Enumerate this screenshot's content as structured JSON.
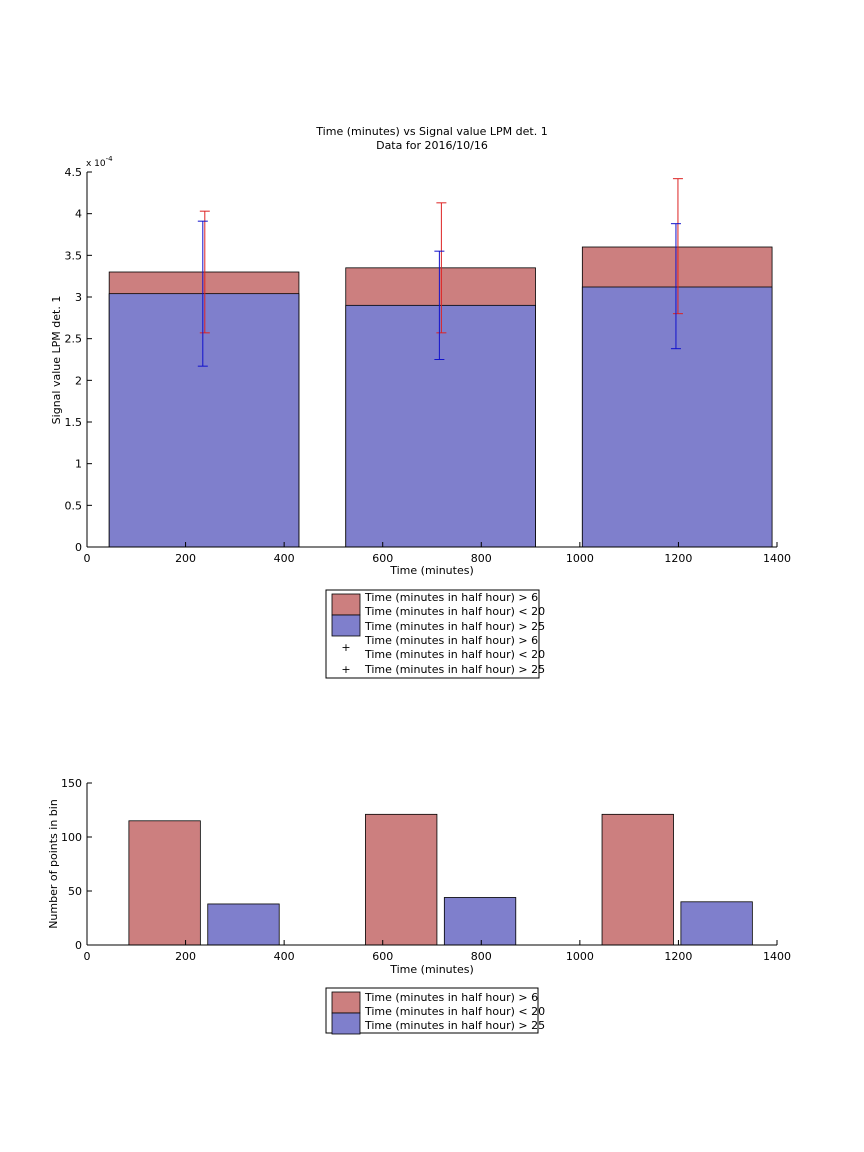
{
  "chart_data": [
    {
      "type": "bar",
      "title": "Time (minutes) vs Signal value LPM det. 1",
      "subtitle": "Data for 2016/10/16",
      "xlabel": "Time (minutes)",
      "ylabel": "Signal value LPM det. 1",
      "y_exponent_label": "x 10",
      "y_exponent_power": "-4",
      "xlim": [
        0,
        1400
      ],
      "ylim": [
        0,
        4.5
      ],
      "x_ticks": [
        "0",
        "200",
        "400",
        "600",
        "800",
        "1000",
        "1200",
        "1400"
      ],
      "y_ticks": [
        "0",
        "0.5",
        "1",
        "1.5",
        "2",
        "2.5",
        "3",
        "3.5",
        "4",
        "4.5"
      ],
      "grid": false,
      "bars": [
        {
          "x_start": 45,
          "x_end": 430,
          "series_gt6_lt20": 3.3,
          "series_gt25": 3.04
        },
        {
          "x_start": 525,
          "x_end": 910,
          "series_gt6_lt20": 3.35,
          "series_gt25": 2.9
        },
        {
          "x_start": 1005,
          "x_end": 1390,
          "series_gt6_lt20": 3.6,
          "series_gt25": 3.12
        }
      ],
      "errorbars": [
        {
          "name": "Time (minutes in half hour) > 6\nTime (minutes in half hour) < 20",
          "color": "#dd2222",
          "points": [
            {
              "x": 237,
              "y": 3.3,
              "low": 2.57,
              "high": 4.03
            },
            {
              "x": 717,
              "y": 3.35,
              "low": 2.57,
              "high": 4.13
            },
            {
              "x": 1197,
              "y": 3.6,
              "low": 2.8,
              "high": 4.42
            }
          ]
        },
        {
          "name": "Time (minutes in half hour) > 25",
          "color": "#1111cc",
          "points": [
            {
              "x": 237,
              "y": 3.04,
              "low": 2.17,
              "high": 3.91
            },
            {
              "x": 717,
              "y": 2.9,
              "low": 2.25,
              "high": 3.55
            },
            {
              "x": 1197,
              "y": 3.12,
              "low": 2.38,
              "high": 3.88
            }
          ]
        }
      ],
      "legend": [
        {
          "kind": "patch",
          "color": "#cc7f7f",
          "line1": "Time (minutes in half hour) > 6",
          "line2": "Time (minutes in half hour) < 20"
        },
        {
          "kind": "patch",
          "color": "#7f7fcc",
          "line1": "Time (minutes in half hour) > 25",
          "line2": ""
        },
        {
          "kind": "marker",
          "color": "#dd2222",
          "line1": "Time (minutes in half hour) > 6",
          "line2": "Time (minutes in half hour) < 20"
        },
        {
          "kind": "marker",
          "color": "#1111cc",
          "line1": "Time (minutes in half hour) > 25",
          "line2": ""
        }
      ],
      "legend_placement": "below"
    },
    {
      "type": "bar",
      "xlabel": "Time (minutes)",
      "ylabel": "Number of points in bin",
      "xlim": [
        0,
        1400
      ],
      "ylim": [
        0,
        150
      ],
      "x_ticks": [
        "0",
        "200",
        "400",
        "600",
        "800",
        "1000",
        "1200",
        "1400"
      ],
      "y_ticks": [
        "0",
        "50",
        "100",
        "150"
      ],
      "grid": false,
      "bars": [
        {
          "x_start": 85,
          "x_end": 230,
          "value": 115,
          "color": "#cc7f7f"
        },
        {
          "x_start": 245,
          "x_end": 390,
          "value": 38,
          "color": "#7f7fcc"
        },
        {
          "x_start": 565,
          "x_end": 710,
          "value": 121,
          "color": "#cc7f7f"
        },
        {
          "x_start": 725,
          "x_end": 870,
          "value": 44,
          "color": "#7f7fcc"
        },
        {
          "x_start": 1045,
          "x_end": 1190,
          "value": 121,
          "color": "#cc7f7f"
        },
        {
          "x_start": 1205,
          "x_end": 1350,
          "value": 40,
          "color": "#7f7fcc"
        }
      ],
      "legend": [
        {
          "kind": "patch",
          "color": "#cc7f7f",
          "line1": "Time (minutes in half hour) > 6",
          "line2": "Time (minutes in half hour) < 20"
        },
        {
          "kind": "patch",
          "color": "#7f7fcc",
          "line1": "Time (minutes in half hour) > 25",
          "line2": ""
        }
      ],
      "legend_placement": "below"
    }
  ]
}
